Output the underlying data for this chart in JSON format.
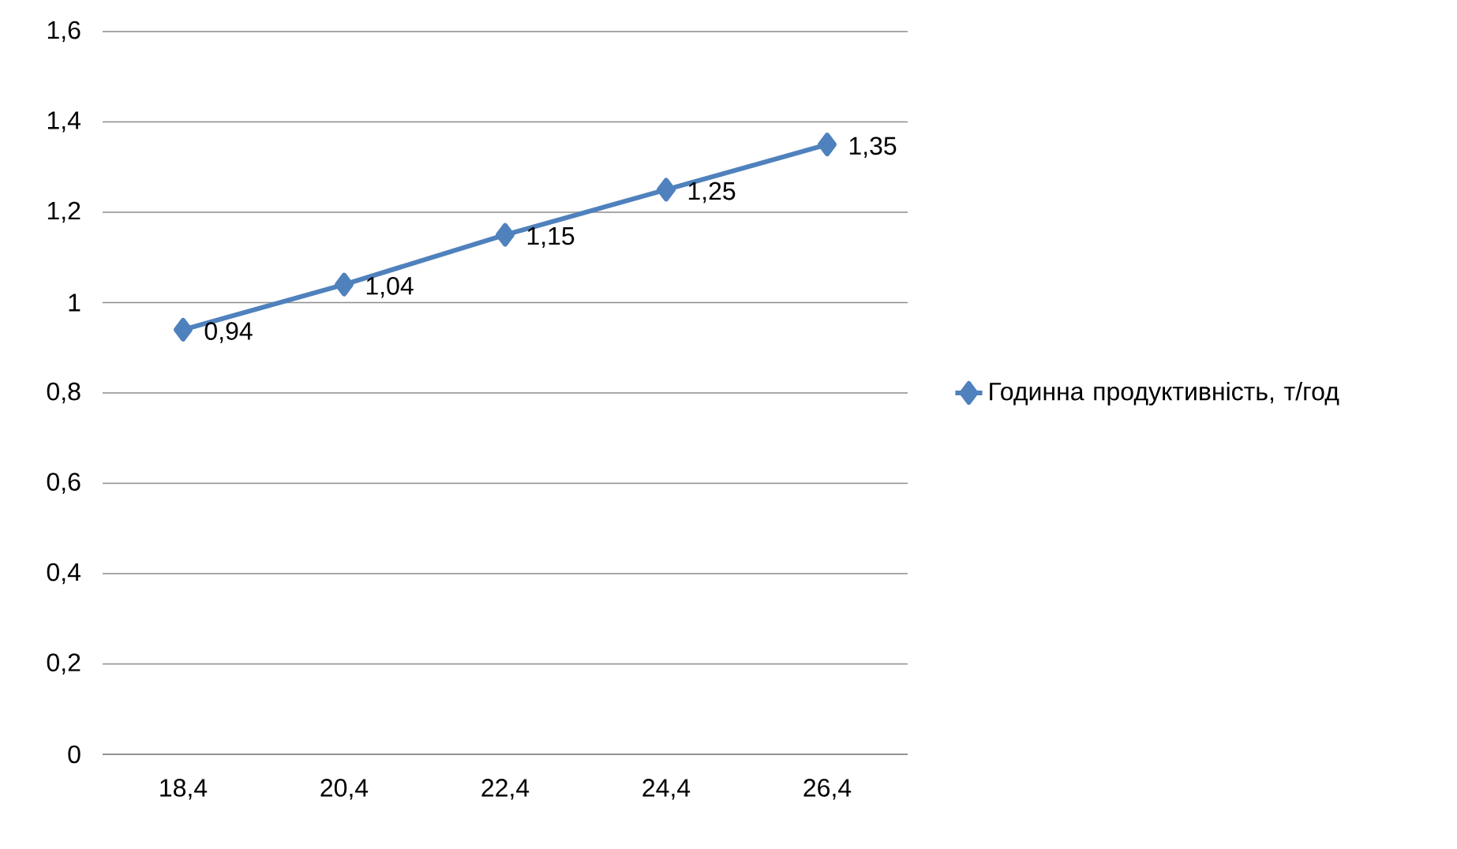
{
  "chart_data": {
    "type": "line",
    "categories": [
      "18,4",
      "20,4",
      "22,4",
      "24,4",
      "26,4"
    ],
    "series": [
      {
        "name": "Годинна продуктивність, т/год",
        "color": "#4f81bd",
        "values": [
          0.94,
          1.04,
          1.15,
          1.25,
          1.35
        ],
        "value_labels": [
          "0,94",
          "1,04",
          "1,15",
          "1,25",
          "1,35"
        ]
      }
    ],
    "ylim": [
      0,
      1.6
    ],
    "yticks": [
      0,
      {
        "value": 0.2,
        "label": "0,2"
      },
      {
        "value": 0.4,
        "label": "0,4"
      },
      {
        "value": 0.6,
        "label": "0,6"
      },
      {
        "value": 0.8,
        "label": "0,8"
      },
      1,
      {
        "value": 1.2,
        "label": "1,2"
      },
      {
        "value": 1.4,
        "label": "1,4"
      },
      {
        "value": 1.6,
        "label": "1,6"
      }
    ],
    "grid": "y",
    "legend": "right",
    "marker": "diamond",
    "line_style": "solid"
  }
}
